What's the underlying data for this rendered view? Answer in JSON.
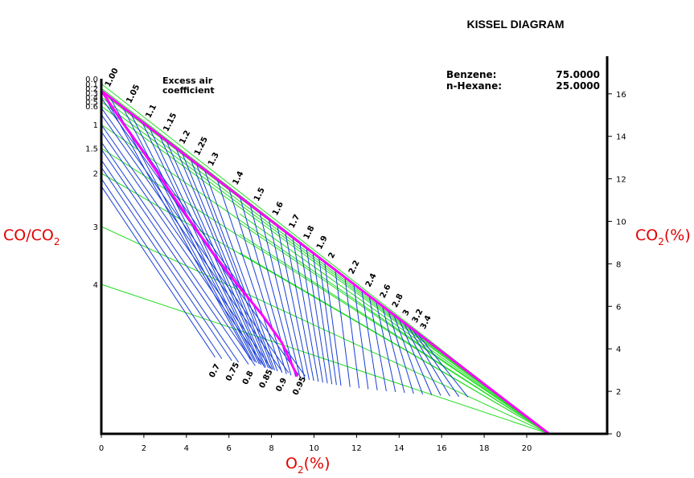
{
  "chart_data": {
    "type": "line",
    "title": "KISSEL DIAGRAM",
    "xlabel": "O",
    "xlabel_sub": "2",
    "xlabel_unit": "(%)",
    "ylabel_left": "CO/CO",
    "ylabel_left_sub": "2",
    "ylabel_right": "CO",
    "ylabel_right_sub": "2",
    "ylabel_right_unit": "(%)",
    "x_ticks": [
      0,
      2,
      4,
      6,
      8,
      10,
      12,
      14,
      16,
      18,
      20
    ],
    "xlim": [
      0,
      23.5
    ],
    "co2_ticks": [
      0,
      2,
      4,
      6,
      8,
      10,
      12,
      14,
      16
    ],
    "co2_lim": [
      0,
      17.6
    ],
    "co2_max": 16.15,
    "o2_max": 21,
    "ratio_ticks": [
      {
        "label": "0.0",
        "value": 0
      },
      {
        "label": "0.1",
        "value": 0.1
      },
      {
        "label": "0.2",
        "value": 0.2
      },
      {
        "label": "0.3",
        "value": 0.3
      },
      {
        "label": "0.4",
        "value": 0.4
      },
      {
        "label": "0.5",
        "value": 0.5
      },
      {
        "label": "0.6",
        "value": 0.6
      },
      {
        "label": "1",
        "value": 1
      },
      {
        "label": "1.5",
        "value": 1.5
      },
      {
        "label": "2",
        "value": 2
      },
      {
        "label": "3",
        "value": 3
      },
      {
        "label": "4",
        "value": 4
      }
    ],
    "excess_air_lean": [
      {
        "label": "1.00",
        "value": 1.0
      },
      {
        "label": "1.05",
        "value": 1.05
      },
      {
        "label": "1.1",
        "value": 1.1
      },
      {
        "label": "1.15",
        "value": 1.15
      },
      {
        "label": "1.2",
        "value": 1.2
      },
      {
        "label": "1.25",
        "value": 1.25
      },
      {
        "label": "1.3",
        "value": 1.3
      },
      {
        "label": "1.4",
        "value": 1.4
      },
      {
        "label": "1.5",
        "value": 1.5
      },
      {
        "label": "1.6",
        "value": 1.6
      },
      {
        "label": "1.7",
        "value": 1.7
      },
      {
        "label": "1.8",
        "value": 1.8
      },
      {
        "label": "1.9",
        "value": 1.9
      },
      {
        "label": "2",
        "value": 2.0
      },
      {
        "label": "2.2",
        "value": 2.2
      },
      {
        "label": "2.4",
        "value": 2.4
      },
      {
        "label": "2.6",
        "value": 2.6
      },
      {
        "label": "2.8",
        "value": 2.8
      },
      {
        "label": "3",
        "value": 3.0
      },
      {
        "label": "3.2",
        "value": 3.2
      },
      {
        "label": "3.4",
        "value": 3.4
      }
    ],
    "excess_air_rich": [
      {
        "label": "0.7",
        "value": 0.7
      },
      {
        "label": "0.75",
        "value": 0.75
      },
      {
        "label": "0.8",
        "value": 0.8
      },
      {
        "label": "0.85",
        "value": 0.85
      },
      {
        "label": "0.9",
        "value": 0.9
      },
      {
        "label": "0.95",
        "value": 0.95
      }
    ],
    "excess_air_note_1": "Excess air",
    "excess_air_note_2": "coefficient",
    "composition": [
      {
        "name": "Benzene:",
        "value": "75.0000"
      },
      {
        "name": "n-Hexane:",
        "value": "25.0000"
      }
    ],
    "magenta_curve": [
      [
        0,
        16.15
      ],
      [
        1.03,
        14.6
      ],
      [
        2.06,
        13.15
      ],
      [
        3.1,
        11.6
      ],
      [
        4.26,
        9.9
      ],
      [
        5.33,
        8.4
      ],
      [
        6.41,
        7.0
      ],
      [
        7.56,
        5.6
      ],
      [
        8.48,
        4.3
      ],
      [
        9.22,
        2.7
      ]
    ],
    "colors": {
      "axis": "#000000",
      "lambda_lines": "#1a3fd6",
      "ratio_lines": "#22dd22",
      "boundary": "#ff00ff",
      "axis_title": "#e00000"
    }
  }
}
